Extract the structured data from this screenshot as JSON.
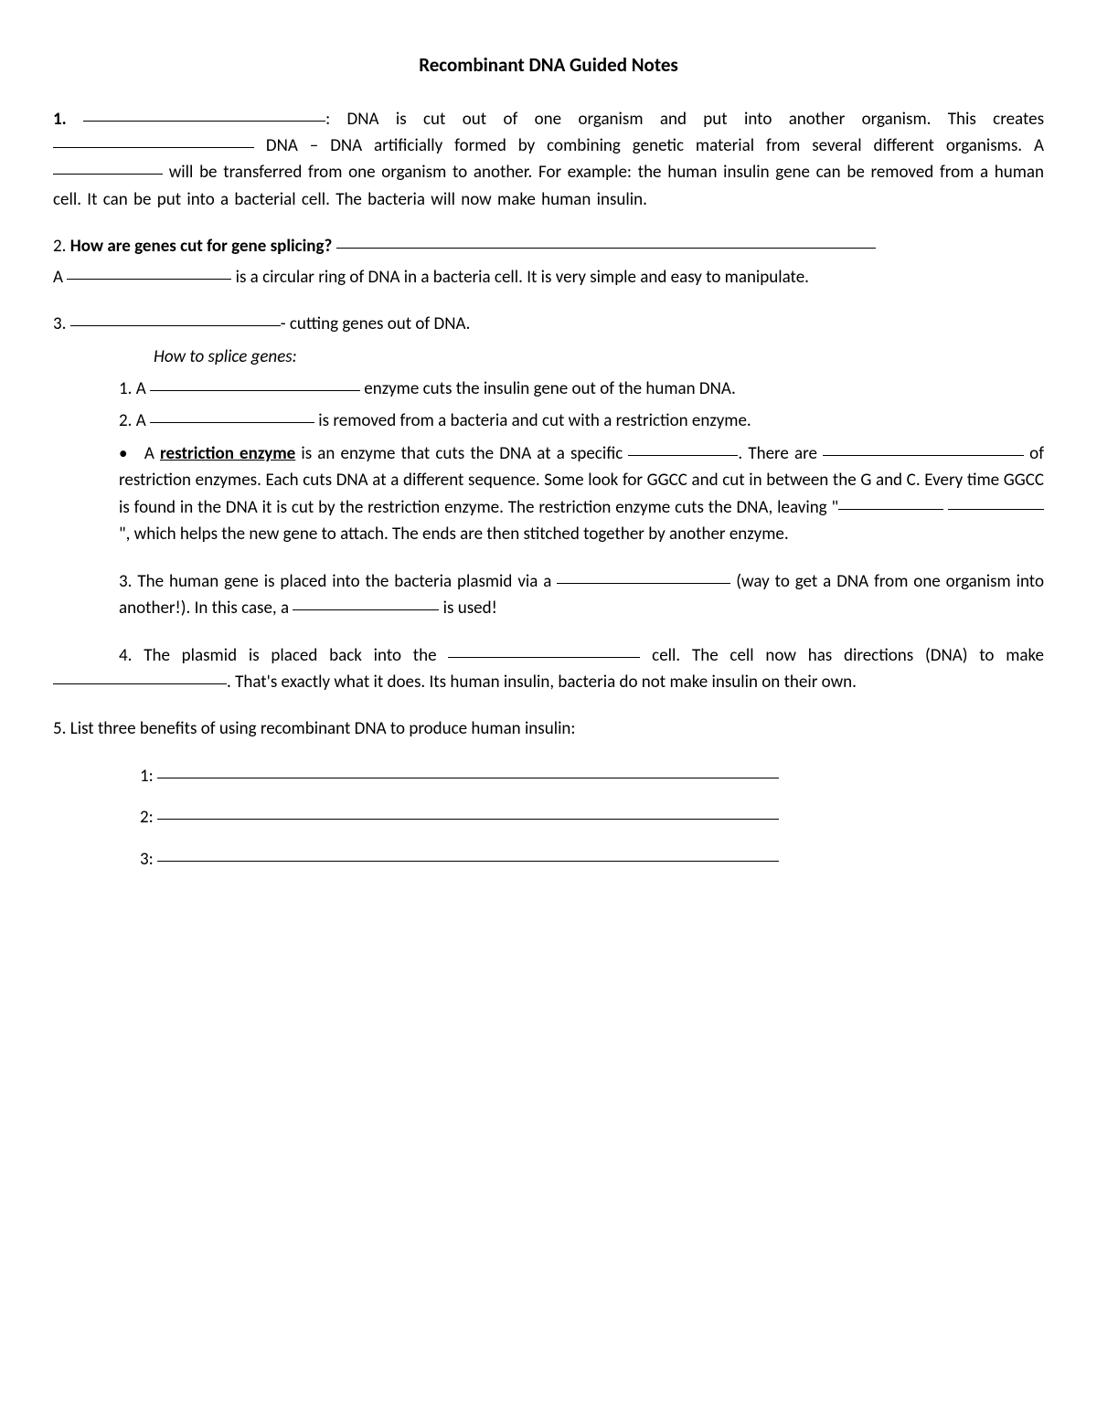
{
  "title": "Recombinant DNA Guided Notes",
  "q1_num": "1.",
  "q1_t1": ": DNA is cut out of one organism and put into another organism.  This creates",
  "q1_t2": " DNA – DNA artificially formed by combining genetic material from several different organisms.  A ",
  "q1_t3": " will be transferred from one organism to another. For example:  the human insulin gene can be removed from a human cell.  It can be put into a bacterial cell.  The bacteria will now make human insulin.",
  "q2_num": "2.  ",
  "q2_bold": "How are genes cut for gene splicing?",
  "q2sub_a": "A ",
  "q2sub_b": " is a circular ring of DNA in a bacteria cell.  It is very simple and easy to manipulate.",
  "q3_num": "3.  ",
  "q3_t1": "- cutting genes out of DNA.",
  "howto": "How to splice genes:",
  "s1_num": "1.   A ",
  "s1_t1": " enzyme cuts the insulin gene out of the human DNA.",
  "s2_num": "2.   A ",
  "s2_t1": " is removed from a bacteria and cut with a restriction enzyme.",
  "sb_bullet": "•",
  "sb_a": "A ",
  "sb_restriction": "restriction enzyme",
  "sb_b": " is an enzyme that cuts the DNA at a specific ",
  "sb_c": ". There are ",
  "sb_d": " of restriction enzymes.  Each cuts DNA at a different sequence.  Some look for GGCC and cut in between the G and C.  Every time GGCC is found in the DNA it is cut by the restriction enzyme.  The restriction enzyme cuts the DNA, leaving \"",
  "sb_e": "\", which helps the new gene to attach. The ends are then stitched together by another enzyme.",
  "s3_a": "3. The human gene is placed into the bacteria plasmid via a ",
  "s3_b": " (way to get a DNA from one organism into another!).  In this case, a ",
  "s3_c": " is used!",
  "s4_a": "4. The plasmid is placed back into the ",
  "s4_b": " cell. The cell now has directions (DNA) to make ",
  "s4_c": ".  That's exactly what it does.  Its human insulin, bacteria do not make insulin on their own.",
  "q5_text": "5.  List three benefits of using recombinant DNA to produce human insulin:",
  "b1": "1: ",
  "b2": "2: ",
  "b3": "3: ",
  "blank_widths": {
    "w1": "265px",
    "w2": "220px",
    "w3": "120px",
    "q2_line": "590px",
    "q2sub": "180px",
    "q3": "230px",
    "s1": "230px",
    "s2": "180px",
    "sb1": "120px",
    "sb2": "220px",
    "sb3a": "115px",
    "sb3b": "105px",
    "s3a": "190px",
    "s3b": "160px",
    "s4a": "210px",
    "s4b": "190px",
    "benefit": "680px"
  },
  "colors": {
    "text": "#000000",
    "bg": "#ffffff"
  },
  "font": {
    "title_size": 21,
    "body_size": 19
  }
}
